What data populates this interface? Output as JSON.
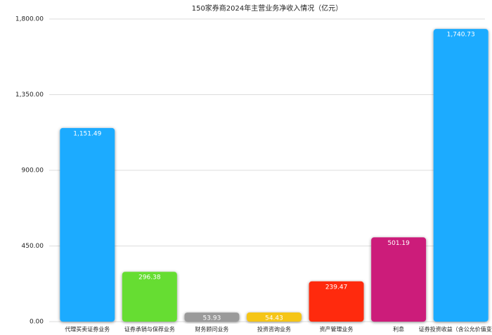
{
  "chart_data": {
    "type": "bar",
    "title": "150家券商2024年主营业务净收入情况（亿元）",
    "categories": [
      "代理买卖证券业务",
      "证券承销与保荐业务",
      "财务顾问业务",
      "投资咨询业务",
      "资产管理业务",
      "利息",
      "证券投资收益（含公允价值变动）"
    ],
    "values": [
      1151.49,
      296.38,
      53.93,
      54.43,
      239.47,
      501.19,
      1740.73
    ],
    "value_labels": [
      "1,151.49",
      "296.38",
      "53.93",
      "54.43",
      "239.47",
      "501.19",
      "1,740.73"
    ],
    "colors": [
      "#1aabff",
      "#66dd33",
      "#9a9a9a",
      "#f5c518",
      "#ff2a0a",
      "#cc1f7a",
      "#1aabff"
    ],
    "ylim": [
      0,
      1800
    ],
    "yticks": [
      {
        "value": 0,
        "label": "0.00"
      },
      {
        "value": 450,
        "label": "450.00"
      },
      {
        "value": 900,
        "label": "900.00"
      },
      {
        "value": 1350,
        "label": "1,350.00"
      },
      {
        "value": 1800,
        "label": "1,800.00"
      }
    ],
    "grid": true
  }
}
